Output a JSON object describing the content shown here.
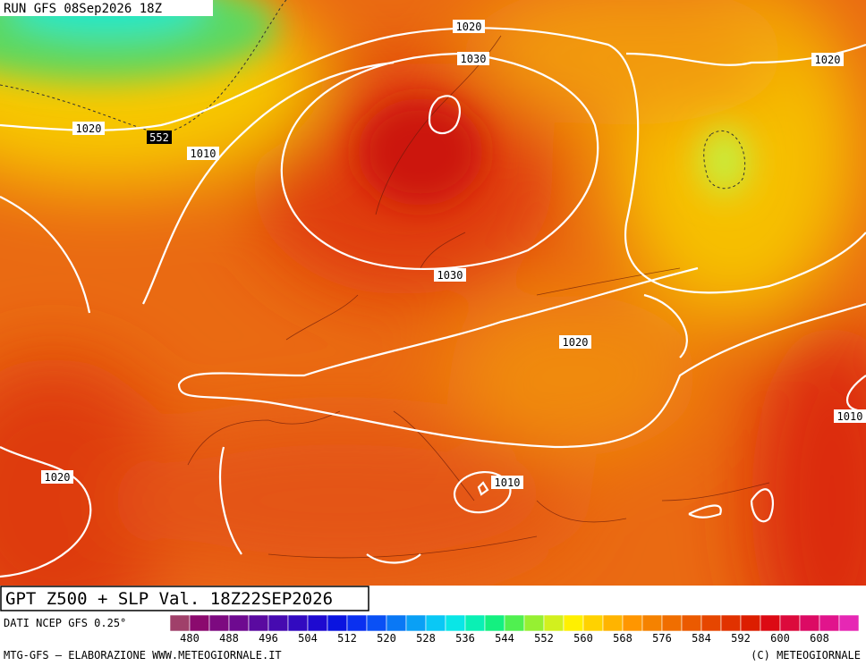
{
  "header": {
    "run": "RUN GFS 08Sep2026 18Z"
  },
  "map": {
    "isobar_labels": [
      "1020",
      "1030",
      "1020",
      "1020",
      "1010",
      "1030",
      "1020",
      "1010",
      "1020",
      "1010"
    ],
    "height_label": "552"
  },
  "footer": {
    "title": "GPT Z500 + SLP Val. 18Z22SEP2026",
    "source": "DATI NCEP GFS 0.25°",
    "credit": "MTG-GFS — ELABORAZIONE WWW.METEOGIORNALE.IT",
    "copyright": "(C) METEOGIORNALE"
  },
  "colorbar": {
    "labels": [
      480,
      488,
      496,
      504,
      512,
      520,
      528,
      536,
      544,
      552,
      560,
      568,
      576,
      584,
      592,
      600,
      608
    ],
    "colors": [
      "#a0406a",
      "#8b0a6e",
      "#7d0a80",
      "#6e0a90",
      "#5a0aa0",
      "#460ab0",
      "#320ac0",
      "#1e0ad0",
      "#0a14e0",
      "#0a30f0",
      "#0a50f5",
      "#0a78f5",
      "#0aa0f5",
      "#0ac8f5",
      "#0ae6e6",
      "#0af0b4",
      "#14f080",
      "#50f050",
      "#96f032",
      "#d2f01e",
      "#fff000",
      "#ffd200",
      "#ffb400",
      "#ff9600",
      "#f58200",
      "#f06e00",
      "#eb5a00",
      "#e64600",
      "#e13200",
      "#dc1e00",
      "#dc0a14",
      "#dc0a3c",
      "#dc0a64",
      "#e1148c",
      "#e628b4"
    ]
  }
}
